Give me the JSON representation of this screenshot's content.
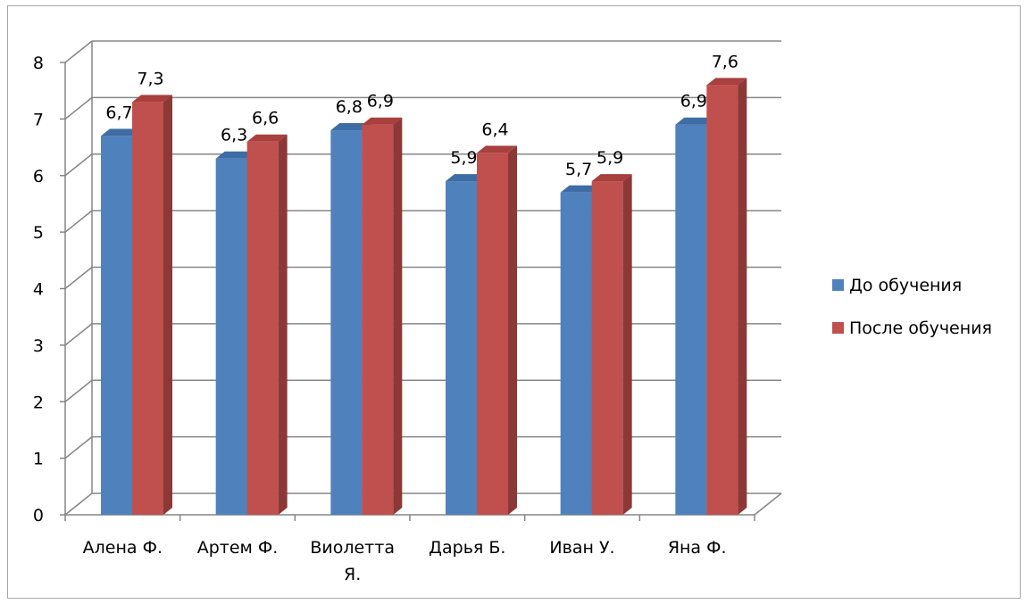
{
  "chart_data": {
    "type": "bar",
    "title": "",
    "xlabel": "",
    "ylabel": "",
    "categories": [
      [
        "Алена Ф."
      ],
      [
        "Артем Ф."
      ],
      [
        "Виолетта",
        "Я."
      ],
      [
        "Дарья Б."
      ],
      [
        "Иван У."
      ],
      [
        "Яна Ф."
      ]
    ],
    "series": [
      {
        "name": "До обучения",
        "values": [
          6.7,
          6.3,
          6.8,
          5.9,
          5.7,
          6.9
        ],
        "labels": [
          "6,7",
          "6,3",
          "6,8",
          "5,9",
          "5,7",
          "6,9"
        ]
      },
      {
        "name": "После обучения",
        "values": [
          7.3,
          6.6,
          6.9,
          6.4,
          5.9,
          7.6
        ],
        "labels": [
          "7,3",
          "6,6",
          "6,9",
          "6,4",
          "5,9",
          "7,6"
        ]
      }
    ],
    "ylim": [
      0,
      8
    ],
    "yticks": [
      "0",
      "1",
      "2",
      "3",
      "4",
      "5",
      "6",
      "7",
      "8"
    ],
    "grid": true,
    "legend": "right",
    "colors": {
      "series": [
        "#4f81bd",
        "#c0504d"
      ],
      "series_top": [
        "#3e6da5",
        "#a8403d"
      ],
      "series_side": [
        "#385d8a",
        "#8c3836"
      ],
      "grid": "#868686"
    }
  }
}
